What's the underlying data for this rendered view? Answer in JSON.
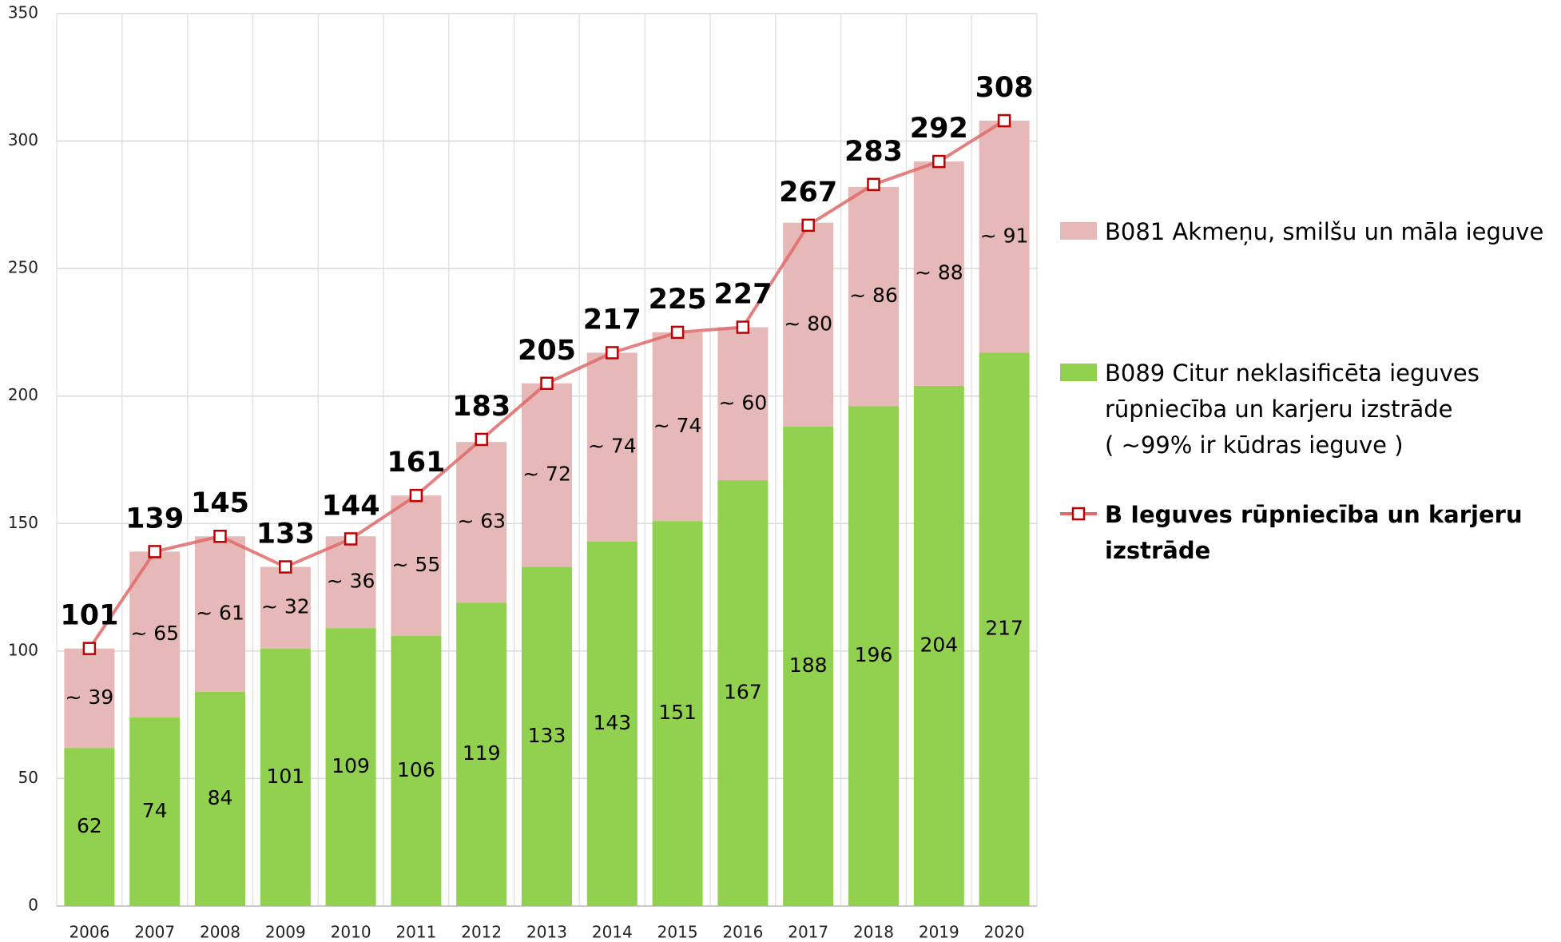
{
  "chart_data": {
    "type": "bar",
    "stacked": true,
    "categories": [
      "2006",
      "2007",
      "2008",
      "2009",
      "2010",
      "2011",
      "2012",
      "2013",
      "2014",
      "2015",
      "2016",
      "2017",
      "2018",
      "2019",
      "2020"
    ],
    "series": [
      {
        "name": "B089 Citur neklasificēta ieguves\nrūpniecība un karjeru izstrāde\n( ~99% ir kūdras ieguve )",
        "color": "#92d050",
        "values": [
          62,
          74,
          84,
          101,
          109,
          106,
          119,
          133,
          143,
          151,
          167,
          188,
          196,
          204,
          217
        ]
      },
      {
        "name": "B081 Akmeņu, smilšu un māla ieguve",
        "color": "#e6b8b7",
        "values": [
          39,
          65,
          61,
          32,
          36,
          55,
          63,
          72,
          74,
          74,
          60,
          80,
          86,
          88,
          91
        ],
        "value_labels": [
          "~ 39",
          "~ 65",
          "~ 61",
          "~ 32",
          "~ 36",
          "~ 55",
          "~ 63",
          "~ 72",
          "~ 74",
          "~ 74",
          "~ 60",
          "~ 80",
          "~ 86",
          "~ 88",
          "~ 91"
        ]
      },
      {
        "name": "B Ieguves rūpniecība un karjeru izstrāde",
        "color": "#de6b6b",
        "type": "line",
        "marker_color": "#c00000",
        "values": [
          101,
          139,
          145,
          133,
          144,
          161,
          183,
          205,
          217,
          225,
          227,
          267,
          283,
          292,
          308
        ]
      }
    ],
    "ylim": [
      0,
      350
    ],
    "yticks": [
      0,
      50,
      100,
      150,
      200,
      250,
      300,
      350
    ],
    "grid": true,
    "legend": "right"
  }
}
